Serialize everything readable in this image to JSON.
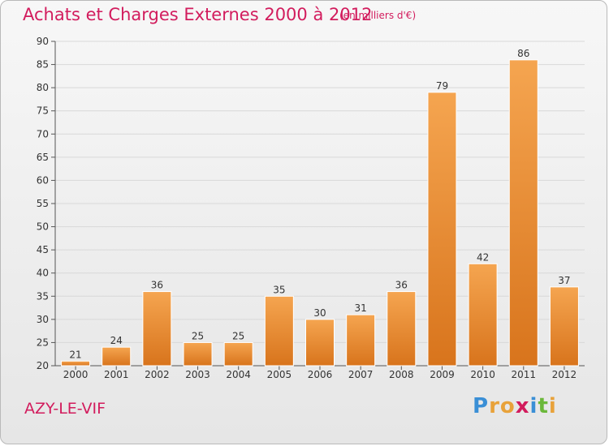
{
  "title": "Achats et Charges Externes 2000 à 2012",
  "subtitle": "(en milliers d'€)",
  "place": "AZY-LE-VIF",
  "logo": {
    "text": "Proxiti",
    "letters": [
      {
        "ch": "P",
        "color": "#3a8fd6"
      },
      {
        "ch": "r",
        "color": "#e8a23a"
      },
      {
        "ch": "o",
        "color": "#e8a23a"
      },
      {
        "ch": "x",
        "color": "#d21c5d"
      },
      {
        "ch": "i",
        "color": "#3a8fd6"
      },
      {
        "ch": "t",
        "color": "#6bb83a"
      },
      {
        "ch": "i",
        "color": "#e8a23a"
      }
    ]
  },
  "colors": {
    "bar_top": "#f5a550",
    "bar_bottom": "#d8741c",
    "grid": "#d8d8d8",
    "title": "#d21c5d"
  },
  "chart_data": {
    "type": "bar",
    "title": "Achats et Charges Externes 2000 à 2012",
    "subtitle": "(en milliers d'€)",
    "xlabel": "",
    "ylabel": "",
    "ylim": [
      20,
      90
    ],
    "yticks": [
      20,
      25,
      30,
      35,
      40,
      45,
      50,
      55,
      60,
      65,
      70,
      75,
      80,
      85,
      90
    ],
    "grid": true,
    "categories": [
      "2000",
      "2001",
      "2002",
      "2003",
      "2004",
      "2005",
      "2006",
      "2007",
      "2008",
      "2009",
      "2010",
      "2011",
      "2012"
    ],
    "values": [
      21,
      24,
      36,
      25,
      25,
      35,
      30,
      31,
      36,
      79,
      42,
      86,
      37
    ]
  }
}
